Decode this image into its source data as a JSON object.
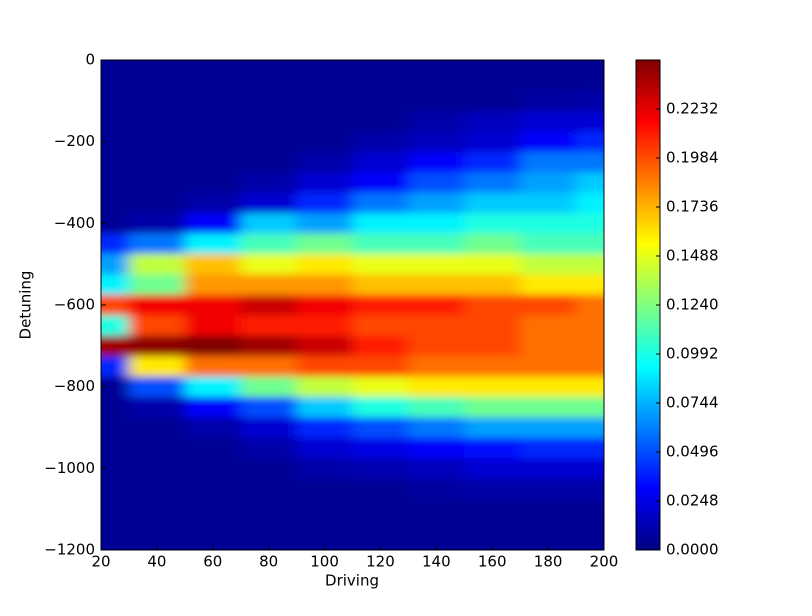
{
  "chart_data": {
    "type": "heatmap",
    "xlabel": "Driving",
    "ylabel": "Detuning",
    "colormap": "jet",
    "x": [
      20,
      40,
      60,
      80,
      100,
      120,
      140,
      160,
      180,
      200
    ],
    "y": [
      0,
      -50,
      -100,
      -150,
      -200,
      -250,
      -300,
      -350,
      -400,
      -450,
      -500,
      -550,
      -600,
      -650,
      -700,
      -750,
      -800,
      -850,
      -900,
      -950,
      -1000,
      -1050,
      -1100,
      -1150,
      -1200
    ],
    "z": [
      [
        0.005,
        0.005,
        0.005,
        0.005,
        0.005,
        0.005,
        0.005,
        0.005,
        0.005,
        0.005
      ],
      [
        0.005,
        0.005,
        0.005,
        0.005,
        0.005,
        0.005,
        0.005,
        0.005,
        0.005,
        0.005
      ],
      [
        0.005,
        0.005,
        0.005,
        0.005,
        0.005,
        0.005,
        0.005,
        0.005,
        0.008,
        0.01
      ],
      [
        0.005,
        0.005,
        0.005,
        0.005,
        0.005,
        0.005,
        0.01,
        0.015,
        0.02,
        0.02
      ],
      [
        0.005,
        0.005,
        0.005,
        0.005,
        0.005,
        0.01,
        0.015,
        0.02,
        0.03,
        0.04
      ],
      [
        0.005,
        0.005,
        0.005,
        0.005,
        0.01,
        0.02,
        0.03,
        0.04,
        0.06,
        0.06
      ],
      [
        0.005,
        0.005,
        0.005,
        0.01,
        0.02,
        0.03,
        0.05,
        0.06,
        0.07,
        0.08
      ],
      [
        0.005,
        0.005,
        0.01,
        0.02,
        0.04,
        0.06,
        0.07,
        0.08,
        0.08,
        0.09
      ],
      [
        0.005,
        0.01,
        0.03,
        0.08,
        0.07,
        0.09,
        0.09,
        0.1,
        0.1,
        0.1
      ],
      [
        0.04,
        0.06,
        0.09,
        0.11,
        0.12,
        0.11,
        0.11,
        0.12,
        0.11,
        0.11
      ],
      [
        0.07,
        0.14,
        0.17,
        0.15,
        0.16,
        0.15,
        0.15,
        0.15,
        0.14,
        0.14
      ],
      [
        0.09,
        0.12,
        0.18,
        0.18,
        0.18,
        0.17,
        0.17,
        0.17,
        0.16,
        0.16
      ],
      [
        0.2,
        0.22,
        0.22,
        0.23,
        0.22,
        0.21,
        0.21,
        0.2,
        0.2,
        0.19
      ],
      [
        0.1,
        0.2,
        0.22,
        0.21,
        0.21,
        0.2,
        0.2,
        0.2,
        0.19,
        0.19
      ],
      [
        0.24,
        0.245,
        0.248,
        0.24,
        0.23,
        0.21,
        0.2,
        0.2,
        0.19,
        0.19
      ],
      [
        0.04,
        0.16,
        0.19,
        0.19,
        0.2,
        0.2,
        0.19,
        0.19,
        0.19,
        0.19
      ],
      [
        0.005,
        0.05,
        0.09,
        0.12,
        0.14,
        0.15,
        0.16,
        0.16,
        0.16,
        0.16
      ],
      [
        0.005,
        0.01,
        0.03,
        0.05,
        0.08,
        0.1,
        0.11,
        0.12,
        0.12,
        0.12
      ],
      [
        0.005,
        0.005,
        0.01,
        0.02,
        0.04,
        0.05,
        0.06,
        0.07,
        0.07,
        0.07
      ],
      [
        0.005,
        0.005,
        0.005,
        0.01,
        0.02,
        0.025,
        0.03,
        0.035,
        0.04,
        0.04
      ],
      [
        0.005,
        0.005,
        0.005,
        0.005,
        0.01,
        0.012,
        0.015,
        0.02,
        0.02,
        0.02
      ],
      [
        0.005,
        0.005,
        0.005,
        0.005,
        0.005,
        0.005,
        0.008,
        0.01,
        0.01,
        0.01
      ],
      [
        0.005,
        0.005,
        0.005,
        0.005,
        0.005,
        0.005,
        0.005,
        0.005,
        0.005,
        0.005
      ],
      [
        0.005,
        0.005,
        0.005,
        0.005,
        0.005,
        0.005,
        0.005,
        0.005,
        0.005,
        0.005
      ],
      [
        0.005,
        0.005,
        0.005,
        0.005,
        0.005,
        0.005,
        0.005,
        0.005,
        0.005,
        0.005
      ]
    ],
    "xlim": [
      20,
      200
    ],
    "ylim": [
      -1200,
      0
    ],
    "xticks": [
      20,
      40,
      60,
      80,
      100,
      120,
      140,
      160,
      180,
      200
    ],
    "yticks": [
      {
        "value": -1200,
        "label": "−1200"
      },
      {
        "value": -1000,
        "label": "−1000"
      },
      {
        "value": -800,
        "label": "−800"
      },
      {
        "value": -600,
        "label": "−600"
      },
      {
        "value": -400,
        "label": "−400"
      },
      {
        "value": -200,
        "label": "−200"
      },
      0
    ],
    "clim": [
      0,
      0.248
    ],
    "cticks": [
      {
        "value": 0,
        "label": "0.0000"
      },
      0.0248,
      0.0496,
      0.0744,
      0.0992,
      {
        "value": 0.124,
        "label": "0.1240"
      },
      0.1488,
      0.1736,
      0.1984,
      0.2232
    ]
  }
}
